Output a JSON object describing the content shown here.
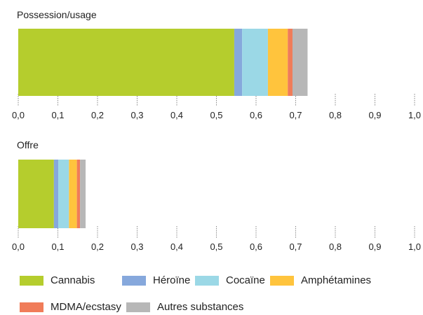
{
  "chart_data": {
    "type": "bar",
    "orientation": "horizontal",
    "stacked": true,
    "xlim": [
      0,
      1
    ],
    "ticks": [
      0,
      0.1,
      0.2,
      0.3,
      0.4,
      0.5,
      0.6,
      0.7,
      0.8,
      0.9,
      1.0
    ],
    "tick_labels": [
      "0,0",
      "0,1",
      "0,2",
      "0,3",
      "0,4",
      "0,5",
      "0,6",
      "0,7",
      "0,8",
      "0,9",
      "1,0"
    ],
    "grid": false,
    "legend_position": "bottom",
    "series_names": [
      "Cannabis",
      "Héroïne",
      "Cocaïne",
      "Amphétamines",
      "MDMA/ecstasy",
      "Autres substances"
    ],
    "colors": [
      "#b5cd2d",
      "#86a8dc",
      "#9bd8e6",
      "#ffc43d",
      "#f07c59",
      "#b7b7b7"
    ],
    "panels": [
      {
        "title": "Possession/usage",
        "values": [
          0.545,
          0.02,
          0.065,
          0.05,
          0.012,
          0.038
        ]
      },
      {
        "title": "Offre",
        "values": [
          0.09,
          0.011,
          0.027,
          0.02,
          0.008,
          0.014
        ]
      }
    ]
  }
}
